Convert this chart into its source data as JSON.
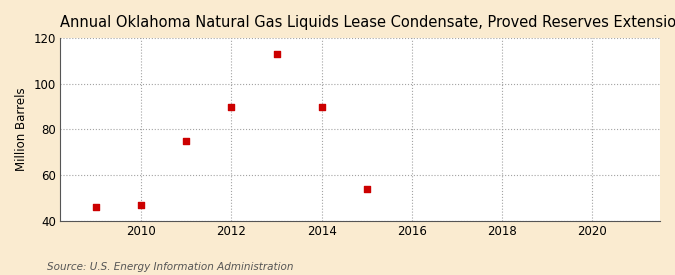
{
  "title": "Annual Oklahoma Natural Gas Liquids Lease Condensate, Proved Reserves Extensions",
  "ylabel": "Million Barrels",
  "source": "Source: U.S. Energy Information Administration",
  "x_data": [
    2009,
    2010,
    2011,
    2012,
    2013,
    2014,
    2015
  ],
  "y_data": [
    46,
    47,
    75,
    90,
    113,
    90,
    54
  ],
  "marker_color": "#cc0000",
  "marker_size": 18,
  "outer_bg": "#faebd0",
  "plot_bg": "#ffffff",
  "grid_color": "#999999",
  "xlim": [
    2008.2,
    2021.5
  ],
  "ylim": [
    40,
    120
  ],
  "yticks": [
    40,
    60,
    80,
    100,
    120
  ],
  "xticks": [
    2010,
    2012,
    2014,
    2016,
    2018,
    2020
  ],
  "title_fontsize": 10.5,
  "label_fontsize": 8.5,
  "tick_fontsize": 8.5,
  "source_fontsize": 7.5
}
